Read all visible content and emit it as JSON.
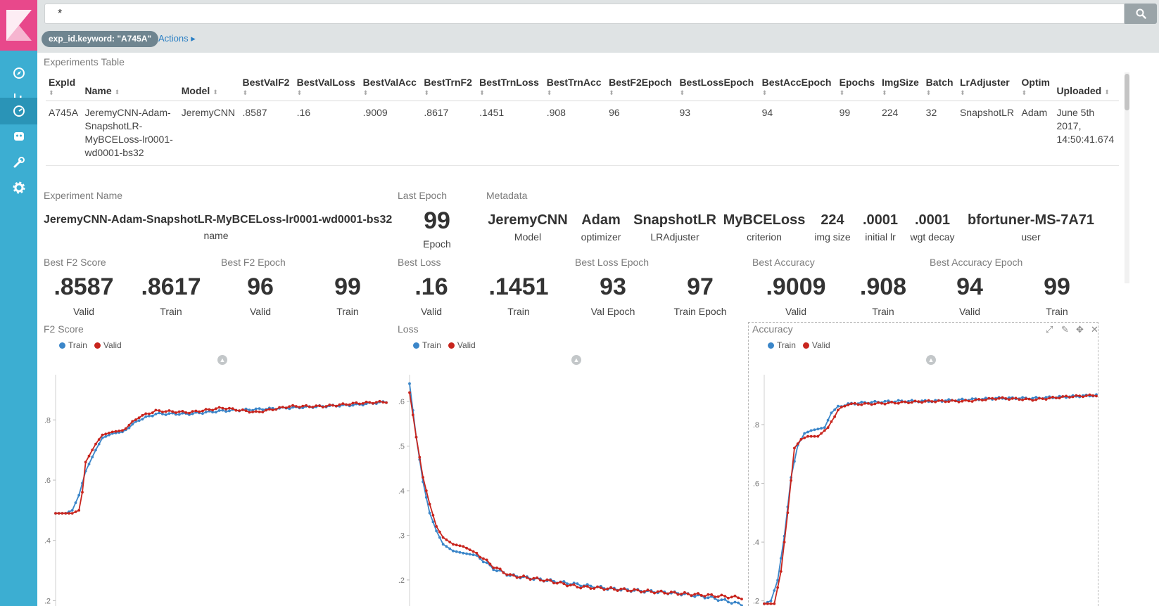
{
  "search": {
    "query": "*"
  },
  "filter": {
    "pill": "exp_id.keyword: \"A745A\"",
    "actions": "Actions ▸"
  },
  "table": {
    "title": "Experiments Table",
    "columns": [
      "ExpId",
      "Name",
      "Model",
      "BestValF2",
      "BestValLoss",
      "BestValAcc",
      "BestTrnF2",
      "BestTrnLoss",
      "BestTrnAcc",
      "BestF2Epoch",
      "BestLossEpoch",
      "BestAccEpoch",
      "Epochs",
      "ImgSize",
      "Batch",
      "LrAdjuster",
      "Optim",
      "Uploaded"
    ],
    "row": {
      "expid": "A745A",
      "name_lines": [
        "JeremyCNN-Adam-",
        "SnapshotLR-",
        "MyBCELoss-lr0001-",
        "wd0001-bs32"
      ],
      "model": "JeremyCNN",
      "best_val_f2": ".8587",
      "best_val_loss": ".16",
      "best_val_acc": ".9009",
      "best_trn_f2": ".8617",
      "best_trn_loss": ".1451",
      "best_trn_acc": ".908",
      "best_f2_epoch": "96",
      "best_loss_epoch": "93",
      "best_acc_epoch": "94",
      "epochs": "99",
      "img_size": "224",
      "batch": "32",
      "lr_adjuster": "SnapshotLR",
      "optim": "Adam",
      "uploaded_lines": [
        "June 5th",
        "2017,",
        "14:50:41.674"
      ]
    }
  },
  "experiment": {
    "title": "Experiment Name",
    "value": "JeremyCNN-Adam-SnapshotLR-MyBCELoss-lr0001-wd0001-bs32",
    "label": "name"
  },
  "last_epoch": {
    "title": "Last Epoch",
    "value": "99",
    "label": "Epoch"
  },
  "metadata": {
    "title": "Metadata",
    "items": [
      {
        "value": "JeremyCNN",
        "label": "Model"
      },
      {
        "value": "Adam",
        "label": "optimizer"
      },
      {
        "value": "SnapshotLR",
        "label": "LRAdjuster"
      },
      {
        "value": "MyBCELoss",
        "label": "criterion"
      },
      {
        "value": "224",
        "label": "img size"
      },
      {
        "value": ".0001",
        "label": "initial lr"
      },
      {
        "value": ".0001",
        "label": "wgt decay"
      },
      {
        "value": "bfortuner-MS-7A71",
        "label": "user"
      }
    ]
  },
  "metrics": [
    {
      "title": "Best F2 Score",
      "items": [
        {
          "value": ".8587",
          "label": "Valid"
        },
        {
          "value": ".8617",
          "label": "Train"
        }
      ]
    },
    {
      "title": "Best F2 Epoch",
      "items": [
        {
          "value": "96",
          "label": "Valid"
        },
        {
          "value": "99",
          "label": "Train"
        }
      ]
    },
    {
      "title": "Best Loss",
      "items": [
        {
          "value": ".16",
          "label": "Valid"
        },
        {
          "value": ".1451",
          "label": "Train"
        }
      ]
    },
    {
      "title": "Best Loss Epoch",
      "items": [
        {
          "value": "93",
          "label": "Val Epoch"
        },
        {
          "value": "97",
          "label": "Train Epoch"
        }
      ]
    },
    {
      "title": "Best Accuracy",
      "items": [
        {
          "value": ".9009",
          "label": "Valid"
        },
        {
          "value": ".908",
          "label": "Train"
        }
      ]
    },
    {
      "title": "Best Accuracy Epoch",
      "items": [
        {
          "value": "94",
          "label": "Valid"
        },
        {
          "value": "99",
          "label": "Train"
        }
      ]
    }
  ],
  "legend": {
    "train": "Train",
    "valid": "Valid",
    "train_color": "#3b86c9",
    "valid_color": "#c8251e"
  },
  "chart_data": [
    {
      "type": "line",
      "title": "F2 Score",
      "xlabel": "",
      "ylabel": "",
      "ylim": [
        0.18,
        0.95
      ],
      "yticks": [
        0.2,
        0.4,
        0.6,
        0.8
      ],
      "ytick_labels": [
        ".2",
        ".4",
        ".6",
        ".8"
      ],
      "series": [
        {
          "name": "Train",
          "x": [
            0,
            3,
            5,
            7,
            9,
            12,
            14,
            17,
            20,
            25,
            30,
            40,
            50,
            60,
            70,
            80,
            90,
            99
          ],
          "values": [
            0.49,
            0.49,
            0.5,
            0.55,
            0.63,
            0.7,
            0.74,
            0.755,
            0.76,
            0.8,
            0.82,
            0.82,
            0.83,
            0.835,
            0.84,
            0.845,
            0.85,
            0.86
          ]
        },
        {
          "name": "Valid",
          "x": [
            0,
            3,
            5,
            7,
            8,
            9,
            12,
            14,
            17,
            20,
            25,
            30,
            40,
            50,
            60,
            70,
            80,
            90,
            99
          ],
          "values": [
            0.49,
            0.49,
            0.49,
            0.5,
            0.56,
            0.66,
            0.72,
            0.75,
            0.76,
            0.765,
            0.81,
            0.83,
            0.825,
            0.84,
            0.825,
            0.845,
            0.845,
            0.855,
            0.86
          ]
        }
      ]
    },
    {
      "type": "line",
      "title": "Loss",
      "xlabel": "",
      "ylabel": "",
      "ylim": [
        0.14,
        0.66
      ],
      "yticks": [
        0.2,
        0.3,
        0.4,
        0.5,
        0.6
      ],
      "ytick_labels": [
        ".2",
        ".3",
        ".4",
        ".5",
        ".6"
      ],
      "series": [
        {
          "name": "Train",
          "x": [
            0,
            2,
            4,
            6,
            8,
            10,
            13,
            16,
            20,
            25,
            30,
            40,
            50,
            60,
            70,
            80,
            90,
            99
          ],
          "values": [
            0.64,
            0.52,
            0.42,
            0.35,
            0.31,
            0.28,
            0.265,
            0.26,
            0.255,
            0.225,
            0.21,
            0.2,
            0.19,
            0.18,
            0.175,
            0.17,
            0.16,
            0.145
          ]
        },
        {
          "name": "Valid",
          "x": [
            0,
            2,
            4,
            6,
            8,
            10,
            13,
            16,
            20,
            25,
            30,
            35,
            40,
            50,
            60,
            70,
            80,
            90,
            99
          ],
          "values": [
            0.62,
            0.52,
            0.43,
            0.37,
            0.32,
            0.295,
            0.28,
            0.275,
            0.26,
            0.23,
            0.21,
            0.205,
            0.2,
            0.185,
            0.18,
            0.175,
            0.17,
            0.165,
            0.16
          ]
        }
      ]
    },
    {
      "type": "line",
      "title": "Accuracy",
      "xlabel": "",
      "ylabel": "",
      "ylim": [
        0.18,
        0.97
      ],
      "yticks": [
        0.2,
        0.4,
        0.6,
        0.8
      ],
      "ytick_labels": [
        ".2",
        ".4",
        ".6",
        ".8"
      ],
      "series": [
        {
          "name": "Train",
          "x": [
            0,
            2,
            4,
            6,
            8,
            10,
            12,
            14,
            16,
            18,
            20,
            22,
            25,
            30,
            40,
            50,
            60,
            70,
            80,
            90,
            99
          ],
          "values": [
            0.19,
            0.2,
            0.27,
            0.42,
            0.62,
            0.73,
            0.77,
            0.78,
            0.785,
            0.79,
            0.84,
            0.86,
            0.87,
            0.875,
            0.88,
            0.88,
            0.885,
            0.89,
            0.89,
            0.895,
            0.9
          ]
        },
        {
          "name": "Valid",
          "x": [
            0,
            3,
            5,
            7,
            9,
            11,
            13,
            16,
            19,
            22,
            25,
            30,
            40,
            50,
            60,
            70,
            80,
            90,
            99
          ],
          "values": [
            0.19,
            0.19,
            0.3,
            0.5,
            0.72,
            0.75,
            0.76,
            0.76,
            0.79,
            0.85,
            0.87,
            0.87,
            0.875,
            0.88,
            0.88,
            0.89,
            0.885,
            0.895,
            0.9
          ]
        }
      ]
    }
  ]
}
